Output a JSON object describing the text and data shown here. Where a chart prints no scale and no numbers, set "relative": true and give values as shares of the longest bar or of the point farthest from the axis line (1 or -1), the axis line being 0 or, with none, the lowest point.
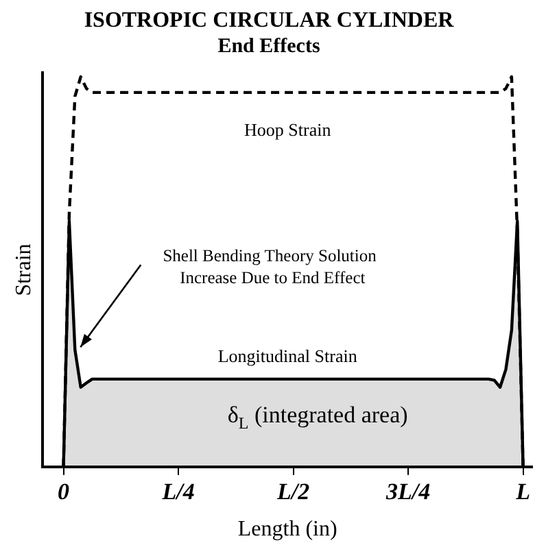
{
  "chart_data": {
    "type": "line",
    "title": "ISOTROPIC CIRCULAR CYLINDER",
    "subtitle": "End Effects",
    "xlabel": "Length (in)",
    "ylabel": "Strain",
    "relative": true,
    "categories": [
      "0",
      null,
      null,
      null,
      null,
      null,
      null,
      null,
      null,
      null,
      null,
      null,
      null,
      null,
      null,
      null,
      null,
      null,
      null,
      null,
      "L/4",
      null,
      null,
      null,
      null,
      null,
      null,
      null,
      null,
      null,
      null,
      null,
      null,
      null,
      null,
      null,
      null,
      null,
      null,
      null,
      "L/2",
      null,
      null,
      null,
      null,
      null,
      null,
      null,
      null,
      null,
      null,
      null,
      null,
      null,
      null,
      null,
      null,
      null,
      null,
      null,
      "3L/4",
      null,
      null,
      null,
      null,
      null,
      null,
      null,
      null,
      null,
      null,
      null,
      null,
      null,
      null,
      null,
      null,
      null,
      null,
      null,
      "L"
    ],
    "series": [
      {
        "name": "Hoop Strain",
        "type": "line",
        "line_style": "dashed",
        "color": "#000000",
        "values": [
          0,
          0.65,
          0.95,
          1,
          0.97,
          0.96,
          0.96,
          0.96,
          0.96,
          0.96,
          0.96,
          0.96,
          0.96,
          0.96,
          0.96,
          0.96,
          0.96,
          0.96,
          0.96,
          0.96,
          0.96,
          0.96,
          0.96,
          0.96,
          0.96,
          0.96,
          0.96,
          0.96,
          0.96,
          0.96,
          0.96,
          0.96,
          0.96,
          0.96,
          0.96,
          0.96,
          0.96,
          0.96,
          0.96,
          0.96,
          0.96,
          0.96,
          0.96,
          0.96,
          0.96,
          0.96,
          0.96,
          0.96,
          0.96,
          0.96,
          0.96,
          0.96,
          0.96,
          0.96,
          0.96,
          0.96,
          0.96,
          0.96,
          0.96,
          0.96,
          0.96,
          0.96,
          0.96,
          0.96,
          0.96,
          0.96,
          0.96,
          0.96,
          0.96,
          0.96,
          0.96,
          0.96,
          0.96,
          0.96,
          0.96,
          0.96,
          0.96,
          0.97,
          1,
          0.6,
          0
        ]
      },
      {
        "name": "Longitudinal Strain",
        "type": "area",
        "line_style": "solid",
        "color": "#000000",
        "values": [
          0,
          0.63,
          0.3,
          0.204,
          0.215,
          0.225,
          0.225,
          0.225,
          0.225,
          0.225,
          0.225,
          0.225,
          0.225,
          0.225,
          0.225,
          0.225,
          0.225,
          0.225,
          0.225,
          0.225,
          0.225,
          0.225,
          0.225,
          0.225,
          0.225,
          0.225,
          0.225,
          0.225,
          0.225,
          0.225,
          0.225,
          0.225,
          0.225,
          0.225,
          0.225,
          0.225,
          0.225,
          0.225,
          0.225,
          0.225,
          0.225,
          0.225,
          0.225,
          0.225,
          0.225,
          0.225,
          0.225,
          0.225,
          0.225,
          0.225,
          0.225,
          0.225,
          0.225,
          0.225,
          0.225,
          0.225,
          0.225,
          0.225,
          0.225,
          0.225,
          0.225,
          0.225,
          0.225,
          0.225,
          0.225,
          0.225,
          0.225,
          0.225,
          0.225,
          0.225,
          0.225,
          0.225,
          0.225,
          0.225,
          0.225,
          0.222,
          0.204,
          0.25,
          0.35,
          0.63,
          0
        ]
      }
    ],
    "annotations": [
      "Shell Bending Theory Solution\nIncrease Due to End Effect",
      "δ$_{L}$ (integrated area)"
    ],
    "grid": false,
    "legend": false,
    "marker": "none"
  }
}
